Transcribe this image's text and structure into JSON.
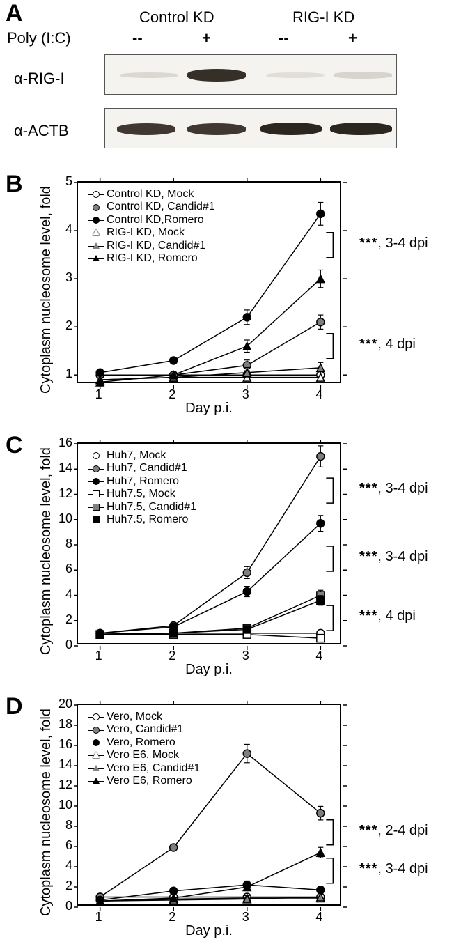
{
  "panelA": {
    "label": "A",
    "row_label": "Poly (I:C)",
    "col_headers": [
      "Control KD",
      "RIG-I KD"
    ],
    "conditions": [
      "--",
      "+",
      "--",
      "+"
    ],
    "blot_labels": [
      "α-RIG-I",
      "α-ACTB"
    ],
    "blot_bg": "#f2efeb",
    "rigI_bands": [
      {
        "x": 0.05,
        "intensity": 0.05,
        "width": 0.2,
        "color": "#8a8276"
      },
      {
        "x": 0.28,
        "intensity": 0.95,
        "width": 0.2,
        "color": "#2d261e"
      },
      {
        "x": 0.55,
        "intensity": 0.04,
        "width": 0.2,
        "color": "#a09a90"
      },
      {
        "x": 0.78,
        "intensity": 0.12,
        "width": 0.2,
        "color": "#8f877b"
      }
    ],
    "actb_bands": [
      {
        "x": 0.04,
        "intensity": 0.9,
        "width": 0.2,
        "color": "#2f271f"
      },
      {
        "x": 0.28,
        "intensity": 0.9,
        "width": 0.2,
        "color": "#2f271f"
      },
      {
        "x": 0.53,
        "intensity": 0.95,
        "width": 0.21,
        "color": "#231d15"
      },
      {
        "x": 0.77,
        "intensity": 0.95,
        "width": 0.21,
        "color": "#231d15"
      }
    ]
  },
  "panelB": {
    "label": "B",
    "y_title": "Cytoplasm nucleosome level, fold",
    "x_title": "Day p.i.",
    "ylim": [
      0.8,
      5
    ],
    "yticks": [
      1,
      2,
      3,
      4,
      5
    ],
    "xticks": [
      1,
      2,
      3,
      4
    ],
    "series": [
      {
        "name": "Control KD, Mock",
        "marker": "circle",
        "fill": "#ffffff",
        "stroke": "#000000",
        "data": [
          [
            1,
            1.0
          ],
          [
            2,
            1.0
          ],
          [
            3,
            1.0
          ],
          [
            4,
            1.0
          ]
        ]
      },
      {
        "name": "Control KD, Candid#1",
        "marker": "circle",
        "fill": "#7f7f7f",
        "stroke": "#000000",
        "data": [
          [
            1,
            1.0
          ],
          [
            2,
            1.0
          ],
          [
            3,
            1.2
          ],
          [
            4,
            2.1
          ]
        ]
      },
      {
        "name": "Control KD,Romero",
        "marker": "circle",
        "fill": "#000000",
        "stroke": "#000000",
        "data": [
          [
            1,
            1.05
          ],
          [
            2,
            1.3
          ],
          [
            3,
            2.2
          ],
          [
            4,
            4.35
          ]
        ]
      },
      {
        "name": "RIG-I KD, Mock",
        "marker": "triangle",
        "fill": "#ffffff",
        "stroke": "#000000",
        "data": [
          [
            1,
            0.9
          ],
          [
            2,
            0.95
          ],
          [
            3,
            0.95
          ],
          [
            4,
            0.95
          ]
        ]
      },
      {
        "name": "RIG-I KD, Candid#1",
        "marker": "triangle",
        "fill": "#7f7f7f",
        "stroke": "#000000",
        "data": [
          [
            1,
            0.9
          ],
          [
            2,
            0.95
          ],
          [
            3,
            1.05
          ],
          [
            4,
            1.15
          ]
        ]
      },
      {
        "name": "RIG-I KD, Romero",
        "marker": "triangle",
        "fill": "#000000",
        "stroke": "#000000",
        "data": [
          [
            1,
            0.85
          ],
          [
            2,
            1.0
          ],
          [
            3,
            1.6
          ],
          [
            4,
            3.0
          ]
        ]
      }
    ],
    "error_bars": {
      "size": 0.15
    },
    "annotations": [
      {
        "text": "***",
        "note": ", 3-4 dpi",
        "y": 3.7
      },
      {
        "text": "***",
        "note": ", 4 dpi",
        "y": 1.6
      }
    ]
  },
  "panelC": {
    "label": "C",
    "y_title": "Cytoplasm nucleosome level, fold",
    "x_title": "Day p.i.",
    "ylim": [
      0,
      16
    ],
    "yticks": [
      0,
      2,
      4,
      6,
      8,
      10,
      12,
      14,
      16
    ],
    "xticks": [
      1,
      2,
      3,
      4
    ],
    "series": [
      {
        "name": "Huh7, Mock",
        "marker": "circle",
        "fill": "#ffffff",
        "stroke": "#000000",
        "data": [
          [
            1,
            1.0
          ],
          [
            2,
            1.0
          ],
          [
            3,
            1.0
          ],
          [
            4,
            1.0
          ]
        ]
      },
      {
        "name": "Huh7, Candid#1",
        "marker": "circle",
        "fill": "#7f7f7f",
        "stroke": "#000000",
        "data": [
          [
            1,
            1.0
          ],
          [
            2,
            1.6
          ],
          [
            3,
            5.8
          ],
          [
            4,
            15.0
          ]
        ]
      },
      {
        "name": "Huh7, Romero",
        "marker": "circle",
        "fill": "#000000",
        "stroke": "#000000",
        "data": [
          [
            1,
            1.0
          ],
          [
            2,
            1.5
          ],
          [
            3,
            4.3
          ],
          [
            4,
            9.7
          ]
        ]
      },
      {
        "name": "Huh7.5, Mock",
        "marker": "square",
        "fill": "#ffffff",
        "stroke": "#000000",
        "data": [
          [
            1,
            0.9
          ],
          [
            2,
            0.9
          ],
          [
            3,
            0.9
          ],
          [
            4,
            0.6
          ]
        ]
      },
      {
        "name": "Huh7.5, Candid#1",
        "marker": "square",
        "fill": "#7f7f7f",
        "stroke": "#000000",
        "data": [
          [
            1,
            0.9
          ],
          [
            2,
            1.0
          ],
          [
            3,
            1.4
          ],
          [
            4,
            4.0
          ]
        ]
      },
      {
        "name": "Huh7.5, Romero",
        "marker": "square",
        "fill": "#000000",
        "stroke": "#000000",
        "data": [
          [
            1,
            0.9
          ],
          [
            2,
            1.0
          ],
          [
            3,
            1.3
          ],
          [
            4,
            3.6
          ]
        ]
      }
    ],
    "annotations": [
      {
        "text": "***",
        "note": ", 3-4 dpi",
        "y": 12.3
      },
      {
        "text": "***",
        "note": ", 3-4 dpi",
        "y": 6.9
      },
      {
        "text": "***",
        "note": ", 4 dpi",
        "y": 2.2
      }
    ]
  },
  "panelD": {
    "label": "D",
    "y_title": "Cytoplasm nucleosome level, fold",
    "x_title": "Day p.i.",
    "ylim": [
      0,
      20
    ],
    "yticks": [
      0,
      2,
      4,
      6,
      8,
      10,
      12,
      14,
      16,
      18,
      20
    ],
    "xticks": [
      1,
      2,
      3,
      4
    ],
    "series": [
      {
        "name": "Vero, Mock",
        "marker": "circle",
        "fill": "#ffffff",
        "stroke": "#000000",
        "data": [
          [
            1,
            1.0
          ],
          [
            2,
            1.0
          ],
          [
            3,
            1.0
          ],
          [
            4,
            1.0
          ]
        ]
      },
      {
        "name": "Vero, Candid#1",
        "marker": "circle",
        "fill": "#7f7f7f",
        "stroke": "#000000",
        "data": [
          [
            1,
            1.0
          ],
          [
            2,
            5.9
          ],
          [
            3,
            15.2
          ],
          [
            4,
            9.3
          ]
        ]
      },
      {
        "name": "Vero, Romero",
        "marker": "circle",
        "fill": "#000000",
        "stroke": "#000000",
        "data": [
          [
            1,
            0.7
          ],
          [
            2,
            1.6
          ],
          [
            3,
            2.2
          ],
          [
            4,
            1.7
          ]
        ]
      },
      {
        "name": "Vero E6, Mock",
        "marker": "triangle",
        "fill": "#ffffff",
        "stroke": "#000000",
        "data": [
          [
            1,
            0.6
          ],
          [
            2,
            0.8
          ],
          [
            3,
            0.9
          ],
          [
            4,
            0.9
          ]
        ]
      },
      {
        "name": "Vero E6, Candid#1",
        "marker": "triangle",
        "fill": "#7f7f7f",
        "stroke": "#000000",
        "data": [
          [
            1,
            0.6
          ],
          [
            2,
            0.7
          ],
          [
            3,
            0.8
          ],
          [
            4,
            1.0
          ]
        ]
      },
      {
        "name": "Vero E6, Romero",
        "marker": "triangle",
        "fill": "#000000",
        "stroke": "#000000",
        "data": [
          [
            1,
            0.6
          ],
          [
            2,
            0.9
          ],
          [
            3,
            2.0
          ],
          [
            4,
            5.4
          ]
        ]
      }
    ],
    "annotations": [
      {
        "text": "***",
        "note": ", 2-4 dpi",
        "y": 7.4
      },
      {
        "text": "***",
        "note": ", 3-4 dpi",
        "y": 3.6
      }
    ]
  },
  "colors": {
    "axis": "#000000",
    "text": "#000000"
  },
  "font_sizes": {
    "panel_label": 34,
    "axis_title": 20,
    "tick": 18,
    "legend": 16,
    "annotation": 20,
    "header": 22
  }
}
